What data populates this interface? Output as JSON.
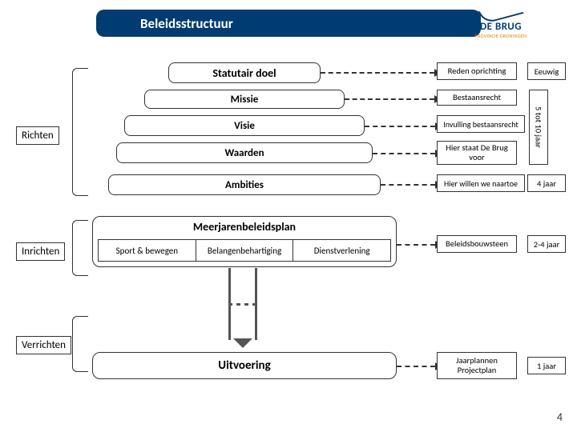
{
  "header": {
    "title": "Beleidsstructuur"
  },
  "logo": {
    "main": "DE BRUG",
    "sub": "PROVINCIE GRONINGEN"
  },
  "side": {
    "richten": "Richten",
    "inrichten": "Inrichten",
    "verrichten": "Verrichten"
  },
  "levels": {
    "statutair": "Statutair doel",
    "missie": "Missie",
    "visie": "Visie",
    "waarden": "Waarden",
    "ambities": "Ambities"
  },
  "mjp": {
    "title": "Meerjarenbeleidsplan",
    "cells": [
      "Sport & bewegen",
      "Belangenbehartiging",
      "Dienstverlening"
    ]
  },
  "uitvoering": "Uitvoering",
  "annot": {
    "reden": "Reden oprichting",
    "bestaan": "Bestaansrecht",
    "invull": "Invulling bestaansrecht",
    "hier1": "Hier staat De Brug voor",
    "hier2": "Hier willen we naartoe",
    "bouw": "Beleidsbouwsteen",
    "jaar": "Jaarplannen Projectplan"
  },
  "duration": {
    "eeuwig": "Eeuwig",
    "five_ten": "5 tot 10 jaar",
    "four": "4 jaar",
    "two_four": "2-4 jaar",
    "one": "1 jaar"
  },
  "page_number": "4",
  "colors": {
    "header_bg": "#003c71",
    "border": "#333333",
    "logo_sub": "#e67e00"
  }
}
